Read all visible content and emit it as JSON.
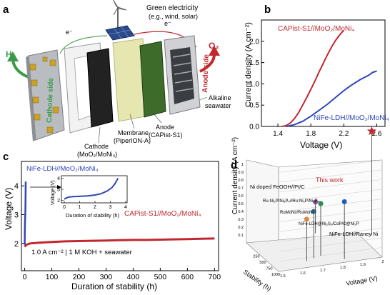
{
  "panel_a": {
    "letter": "a",
    "energy_label": "Green electricity",
    "energy_sub": "(e.g., wind, solar)",
    "electron_left": "e⁻",
    "electron_right": "e⁻",
    "h2": "H₂",
    "o2": "O₂",
    "cathode_side": "Cathode side",
    "anode_side": "Anode side",
    "electrolyte": [
      "Alkaline",
      "seawater"
    ],
    "membrane": [
      "Membrane",
      "(PiperION-A)"
    ],
    "anode": [
      "Anode",
      "(CAPist-S1)"
    ],
    "cathode": [
      "Cathode",
      "(MoO₂/MoNi₄)"
    ]
  },
  "chart_data": [
    {
      "panel": "b",
      "type": "line",
      "xlabel": "Voltage (V)",
      "ylabel": "Current density (A cm⁻²)",
      "xlim": [
        1.2,
        2.7
      ],
      "ylim": [
        0,
        2.5
      ],
      "xticks": [
        1.4,
        1.8,
        2.2,
        2.6
      ],
      "yticks": [
        0.0,
        0.5,
        1.0,
        1.5,
        2.0
      ],
      "series": [
        {
          "name": "CAPist-S1//MoO₂/MoNi₄",
          "color": "#c0282d",
          "x": [
            1.45,
            1.5,
            1.55,
            1.6,
            1.65,
            1.7,
            1.75,
            1.8,
            1.85,
            1.9,
            1.95,
            2.0,
            2.05,
            2.1,
            2.15,
            2.18,
            2.2
          ],
          "y": [
            0.0,
            0.02,
            0.08,
            0.18,
            0.32,
            0.5,
            0.68,
            0.87,
            1.07,
            1.28,
            1.48,
            1.68,
            1.86,
            2.02,
            2.15,
            2.22,
            2.25
          ]
        },
        {
          "name": "NiFe-LDH//MoO₂/MoNi₄",
          "color": "#2e46b8",
          "x": [
            1.5,
            1.6,
            1.7,
            1.8,
            1.9,
            2.0,
            2.1,
            2.2,
            2.3,
            2.4,
            2.5,
            2.55,
            2.6
          ],
          "y": [
            0.0,
            0.04,
            0.12,
            0.24,
            0.38,
            0.52,
            0.68,
            0.84,
            0.98,
            1.1,
            1.2,
            1.27,
            1.3
          ]
        }
      ]
    },
    {
      "panel": "c",
      "type": "line",
      "xlabel": "Duration of stability (h)",
      "ylabel": "Voltage (V)",
      "xlim": [
        -12,
        715
      ],
      "ylim": [
        1.05,
        4.85
      ],
      "xticks": [
        0,
        100,
        200,
        300,
        400,
        500,
        600,
        700
      ],
      "yticks": [
        2,
        3,
        4
      ],
      "annotation": "1.0 A cm⁻² | 1 M KOH + seawater",
      "series": [
        {
          "name": "CAPist-S1//MoO₂/MoNi₄",
          "color": "#c0282d",
          "x": [
            0,
            5,
            20,
            50,
            100,
            150,
            200,
            250,
            300,
            350,
            400,
            450,
            500,
            550,
            600,
            650,
            700
          ],
          "y": [
            1.88,
            1.95,
            2.0,
            2.02,
            2.05,
            2.07,
            2.08,
            2.09,
            2.1,
            2.11,
            2.12,
            2.12,
            2.13,
            2.14,
            2.15,
            2.16,
            2.17
          ]
        },
        {
          "name": "NiFe-LDH//MoO₂/MoNi₄",
          "color": "#2e46b8",
          "x": [
            0,
            0.5,
            1,
            1.5,
            2,
            2.5,
            3,
            3.5,
            3.8
          ],
          "y": [
            1.95,
            2.3,
            2.6,
            2.8,
            2.95,
            3.1,
            3.4,
            3.9,
            4.15
          ]
        }
      ],
      "inset": {
        "xlabel": "Duration of stability (h)",
        "ylabel": "Voltage (V)",
        "xlim": [
          0,
          4
        ],
        "ylim": [
          1.9,
          4.1
        ],
        "xticks": [
          0,
          1,
          2,
          3,
          4
        ],
        "yticks": [
          2,
          3,
          4
        ],
        "x": [
          0,
          0.1,
          0.3,
          0.6,
          1.0,
          1.5,
          2.0,
          2.4,
          2.8,
          3.1,
          3.3,
          3.5
        ],
        "y": [
          2.1,
          2.2,
          2.3,
          2.34,
          2.36,
          2.4,
          2.48,
          2.6,
          2.85,
          3.15,
          3.5,
          4.0
        ]
      }
    },
    {
      "panel": "d",
      "type": "scatter",
      "xlabel": "Stability (h)",
      "ylabel": "Current density (A cm⁻²)",
      "zlabel": "Voltage (V)",
      "stability_ticks": [
        "250",
        "500",
        "750",
        "1000"
      ],
      "voltage_ticks": [
        "1.5",
        "1.6",
        "1.7",
        "1.8",
        "1.9",
        "2"
      ],
      "cd_ticks": [
        "0.1",
        "0.2",
        "0.3",
        "0.4",
        "0.5",
        "0.6",
        "0.7",
        "0.8",
        "0.9",
        "1"
      ],
      "points": [
        {
          "name": "This work",
          "color": "#c0282d",
          "marker": "star",
          "cd": 1.0,
          "stability": 700,
          "voltage": 2.17
        },
        {
          "name": "Ni doped FeOOH//Pt/C",
          "color": "#1f5fb0",
          "marker": "circle",
          "cd": 0.55,
          "stability": 100,
          "voltage": 1.9
        },
        {
          "name": "Ru-Ni₂P/Ni₅P₄//Ru-Ni₂P/Ni₅P₄",
          "color": "#2a8a5a",
          "marker": "circle",
          "cd": 0.5,
          "stability": 300,
          "voltage": 1.8
        },
        {
          "name": "RuMoNi//RuMoNi",
          "color": "#2d6b8a",
          "marker": "circle",
          "cd": 0.45,
          "stability": 250,
          "voltage": 1.75
        },
        {
          "name": "NiFe-LDH@Ni₃S₂/CoP/C@Ni₂P",
          "color": "#d98a3a",
          "marker": "circle",
          "cd": 0.4,
          "stability": 200,
          "voltage": 1.7
        },
        {
          "name": "NiFe-LDH//Raney Ni",
          "color": "#8a4a9a",
          "marker": "circle",
          "cd": 0.3,
          "stability": 1000,
          "voltage": 1.9
        }
      ]
    }
  ],
  "labels": {
    "a": "a",
    "b": "b",
    "c": "c",
    "d": "d",
    "b_red": "CAPist-S1//MoO₂/MoNi₄",
    "b_blue_1": "NiFe-LDH//MoO₂/MoNi₄",
    "c_red": "CAPist-S1//MoO₂/MoNi₄",
    "c_blue": "NiFe-LDH//MoO₂/MoNi₄",
    "d_this": "This work",
    "d_p1": "Ni doped FeOOH//Pt/C",
    "d_p2": "Ru-Ni₂P/Ni₅P₄//Ru-Ni₂P/Ni₅P₄",
    "d_p3": "RuMoNi//RuMoNi",
    "d_p4": "NiFe-LDH@Ni₃S₂/CoP/C@Ni₂P",
    "d_p5": "NiFe-LDH//Raney Ni"
  }
}
